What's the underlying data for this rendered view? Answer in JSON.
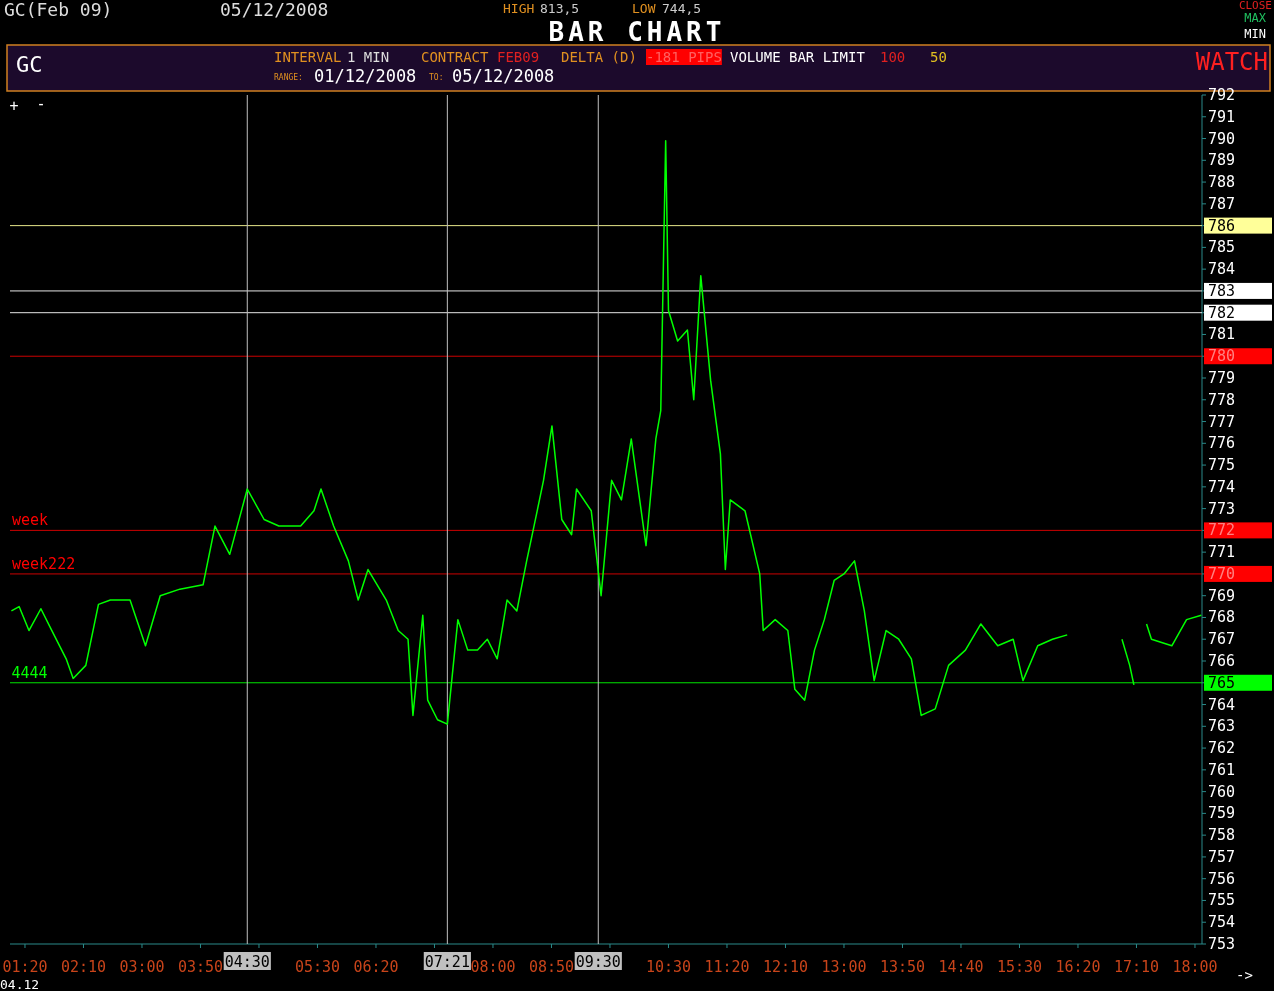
{
  "chart_data": {
    "type": "line",
    "title": "BAR CHART",
    "annotations": [
      "GC(Feb 09)",
      "05/12/2008",
      "HIGH",
      "813,5",
      "LOW",
      "744,5",
      "CLOSE",
      "MAX",
      "MIN",
      "GC",
      "INTERVAL",
      "1 MIN",
      "CONTRACT",
      "FEB09",
      "DELTA (D)",
      "-181 PIPS",
      "VOLUME BAR LIMIT",
      "100",
      "50",
      "RANGE:",
      "01/12/2008",
      "TO:",
      "05/12/2008",
      "WATCH",
      "04.12",
      "->",
      "+",
      "-",
      {
        "text": "4444",
        "x": 1.14,
        "y": 765
      }
    ],
    "xlim": [
      1.12,
      18.1
    ],
    "xticks": [
      {
        "value": 1.3333,
        "label": "01:20"
      },
      {
        "value": 2.1667,
        "label": "02:10"
      },
      {
        "value": 3,
        "label": "03:00"
      },
      {
        "value": 3.8333,
        "label": "03:50"
      },
      {
        "value": 4.6667,
        "label": null
      },
      {
        "value": 5.5,
        "label": "05:30"
      },
      {
        "value": 6.3333,
        "label": "06:20"
      },
      {
        "value": 7.1667,
        "label": null
      },
      {
        "value": 8,
        "label": "08:00"
      },
      {
        "value": 8.8333,
        "label": "08:50"
      },
      {
        "value": 9.6667,
        "label": null
      },
      {
        "value": 10.5,
        "label": "10:30"
      },
      {
        "value": 11.3333,
        "label": "11:20"
      },
      {
        "value": 12.1667,
        "label": "12:10"
      },
      {
        "value": 13,
        "label": "13:00"
      },
      {
        "value": 13.8333,
        "label": "13:50"
      },
      {
        "value": 14.6667,
        "label": "14:40"
      },
      {
        "value": 15.5,
        "label": "15:30"
      },
      {
        "value": 16.3333,
        "label": "16:20"
      },
      {
        "value": 17.1667,
        "label": "17:10"
      },
      {
        "value": 18,
        "label": "18:00"
      }
    ],
    "ylim": [
      753,
      792
    ],
    "yticks": [
      753,
      754,
      755,
      756,
      757,
      758,
      759,
      760,
      761,
      762,
      763,
      764,
      765,
      766,
      767,
      768,
      769,
      770,
      771,
      772,
      773,
      774,
      775,
      776,
      777,
      778,
      779,
      780,
      781,
      782,
      783,
      784,
      785,
      786,
      787,
      788,
      789,
      790,
      791,
      792
    ],
    "grid": false,
    "marker": "none",
    "line_style": "solid",
    "ref_lines": [
      {
        "axis": "y",
        "value": 786,
        "label": null,
        "color": "#ffff99"
      },
      {
        "axis": "y",
        "value": 783,
        "label": null,
        "color": "#ffffff"
      },
      {
        "axis": "y",
        "value": 782,
        "label": null,
        "color": "#ffffff"
      },
      {
        "axis": "y",
        "value": 780,
        "label": null,
        "color": "#ff0000"
      },
      {
        "axis": "y",
        "value": 772,
        "label": "week",
        "color": "#ff0000"
      },
      {
        "axis": "y",
        "value": 770,
        "label": "week222",
        "color": "#ff0000"
      },
      {
        "axis": "y",
        "value": 765,
        "label": null,
        "color": "#00ff00"
      },
      {
        "axis": "x",
        "value": 4.5,
        "label": "04:30",
        "color": "#c0c0c0"
      },
      {
        "axis": "x",
        "value": 7.35,
        "label": "07:21",
        "color": "#c0c0c0"
      },
      {
        "axis": "x",
        "value": 9.5,
        "label": "09:30",
        "color": "#c0c0c0"
      }
    ],
    "series": [
      {
        "color": "#00ff00",
        "x": [
          1.14,
          1.25,
          1.39,
          1.56,
          1.7,
          1.92,
          2.02,
          2.2,
          2.38,
          2.55,
          2.83,
          3.05,
          3.26,
          3.54,
          3.87,
          4.04,
          4.25,
          4.5,
          4.74,
          4.95,
          5.26,
          5.45,
          5.55,
          5.73,
          5.94,
          6.08,
          6.22,
          6.48,
          6.65,
          6.79,
          6.86,
          7.0,
          7.07,
          7.21,
          7.35,
          7.5,
          7.64,
          7.78,
          7.92,
          8.06,
          8.2,
          8.34,
          8.48,
          8.63,
          8.72,
          8.84,
          8.98,
          9.12,
          9.19,
          9.4,
          9.54,
          9.69,
          9.83,
          9.97,
          10.18,
          10.32,
          10.39,
          10.46,
          10.5,
          10.63,
          10.77,
          10.86,
          10.96,
          11.1,
          11.24,
          11.31,
          11.38,
          11.59,
          11.8,
          11.85,
          12.02,
          12.2,
          12.3,
          12.44,
          12.58,
          12.72,
          12.86,
          13.0,
          13.15,
          13.29,
          13.43,
          13.6,
          13.78,
          13.96,
          14.1,
          14.3,
          14.49,
          14.73,
          14.95,
          15.19,
          15.41,
          15.55,
          15.76,
          15.97,
          16.18,
          16.5,
          16.96,
          17.07,
          17.13,
          17.2,
          17.31,
          17.38,
          17.67,
          17.88,
          18.09
        ],
        "values": [
          768.3,
          768.5,
          767.4,
          768.4,
          767.5,
          766.1,
          765.2,
          765.8,
          768.6,
          768.8,
          768.8,
          766.7,
          769.0,
          769.3,
          769.5,
          772.2,
          770.9,
          773.9,
          772.5,
          772.2,
          772.2,
          772.9,
          773.9,
          772.2,
          770.6,
          768.8,
          770.2,
          768.8,
          767.4,
          767.0,
          763.5,
          768.1,
          764.2,
          763.3,
          763.1,
          767.9,
          766.5,
          766.5,
          767.0,
          766.1,
          768.8,
          768.3,
          770.6,
          772.9,
          774.3,
          776.8,
          772.5,
          771.8,
          773.9,
          772.9,
          769.0,
          774.3,
          773.4,
          776.2,
          771.3,
          776.2,
          777.5,
          789.9,
          782.1,
          780.7,
          781.2,
          778.0,
          783.7,
          778.9,
          775.5,
          770.2,
          773.4,
          772.9,
          770.0,
          767.4,
          767.9,
          767.4,
          764.7,
          764.2,
          766.5,
          767.9,
          769.7,
          770.0,
          770.6,
          768.3,
          765.1,
          767.4,
          767.0,
          766.1,
          763.5,
          763.8,
          765.8,
          766.5,
          767.7,
          766.7,
          767.0,
          765.1,
          766.7,
          767.0,
          767.2,
          null,
          767.0,
          765.8,
          764.9,
          null,
          767.7,
          767.0,
          766.7,
          767.9,
          768.1
        ]
      }
    ]
  }
}
